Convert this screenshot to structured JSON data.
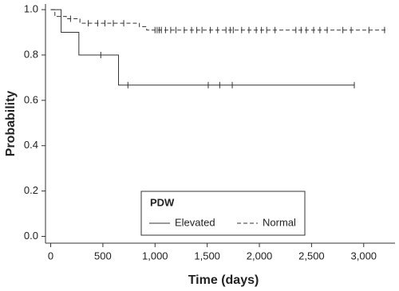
{
  "chart_data": {
    "type": "km",
    "xlabel": "Time (days)",
    "ylabel": "Probability",
    "xlim": [
      -50,
      3300
    ],
    "ylim": [
      -0.03,
      1.025
    ],
    "xticks": [
      0,
      500,
      {
        "value": 1000,
        "label": "1,000"
      },
      {
        "value": 1500,
        "label": "1,500"
      },
      {
        "value": 2000,
        "label": "2,000"
      },
      {
        "value": 2500,
        "label": "2,500"
      },
      {
        "value": 3000,
        "label": "3,000"
      }
    ],
    "yticks": [
      {
        "value": 0,
        "label": "0.0"
      },
      0.2,
      0.4,
      0.6,
      0.8,
      {
        "value": 1,
        "label": "1.0"
      }
    ],
    "legend_title": "PDW",
    "series": [
      {
        "name": "Elevated",
        "color": "#333333",
        "dash": "solid",
        "x": [
          0,
          100,
          270,
          650,
          2910
        ],
        "values": [
          1,
          0.9,
          0.8,
          0.667,
          0.667
        ],
        "censored_x": [
          480,
          740,
          1510,
          1620,
          1740,
          2910
        ],
        "censored_values": [
          0.8,
          0.667,
          0.667,
          0.667,
          0.667,
          0.667
        ]
      },
      {
        "name": "Normal",
        "color": "#333333",
        "dash": "dashed",
        "x": [
          0,
          40,
          150,
          280,
          850,
          920,
          3220
        ],
        "values": [
          1,
          0.97,
          0.96,
          0.94,
          0.925,
          0.91,
          0.91
        ],
        "censored_x": [
          190,
          360,
          450,
          520,
          600,
          700,
          1000,
          1020,
          1040,
          1060,
          1100,
          1150,
          1200,
          1280,
          1350,
          1400,
          1450,
          1530,
          1600,
          1680,
          1720,
          1750,
          1830,
          1900,
          1970,
          2020,
          2070,
          2150,
          2350,
          2400,
          2450,
          2520,
          2580,
          2650,
          2800,
          2880,
          3050,
          3200
        ],
        "censored_values": [
          0.96,
          0.94,
          0.94,
          0.94,
          0.94,
          0.94,
          0.91,
          0.91,
          0.91,
          0.91,
          0.91,
          0.91,
          0.91,
          0.91,
          0.91,
          0.91,
          0.91,
          0.91,
          0.91,
          0.91,
          0.91,
          0.91,
          0.91,
          0.91,
          0.91,
          0.91,
          0.91,
          0.91,
          0.91,
          0.91,
          0.91,
          0.91,
          0.91,
          0.91,
          0.91,
          0.91,
          0.91,
          0.91
        ]
      }
    ]
  }
}
